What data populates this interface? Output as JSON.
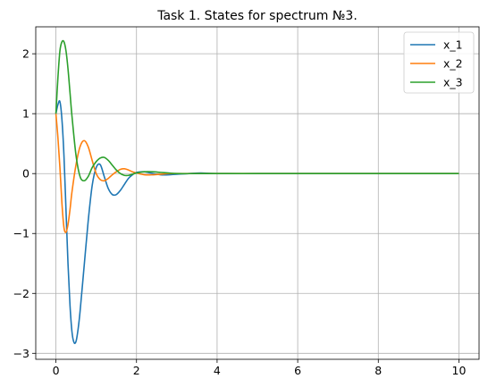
{
  "chart_data": {
    "type": "line",
    "title": "Task 1. States for spectrum №3.",
    "xlabel": "",
    "ylabel": "",
    "xlim": [
      -0.5,
      10.5
    ],
    "ylim": [
      -3.1,
      2.45
    ],
    "xticks": [
      0,
      2,
      4,
      6,
      8,
      10
    ],
    "xtick_labels": [
      "0",
      "2",
      "4",
      "6",
      "8",
      "10"
    ],
    "yticks": [
      -3,
      -2,
      -1,
      0,
      1,
      2
    ],
    "ytick_labels": [
      "−3",
      "−2",
      "−1",
      "0",
      "1",
      "2"
    ],
    "grid": true,
    "legend_position": "top-right",
    "series": [
      {
        "name": "x_1",
        "color": "#1f77b4",
        "x": [
          0,
          0.05,
          0.1,
          0.15,
          0.2,
          0.25,
          0.3,
          0.35,
          0.4,
          0.45,
          0.5,
          0.55,
          0.6,
          0.7,
          0.8,
          0.9,
          1.0,
          1.1,
          1.2,
          1.3,
          1.4,
          1.5,
          1.6,
          1.7,
          1.8,
          1.9,
          2.0,
          2.2,
          2.4,
          2.6,
          2.8,
          3.0,
          3.3,
          3.6,
          4.0,
          5,
          6,
          7,
          8,
          9,
          10
        ],
        "values": [
          1.0,
          1.15,
          1.2,
          0.9,
          0.3,
          -0.6,
          -1.5,
          -2.2,
          -2.65,
          -2.82,
          -2.8,
          -2.6,
          -2.3,
          -1.55,
          -0.8,
          -0.2,
          0.1,
          0.15,
          -0.05,
          -0.25,
          -0.35,
          -0.35,
          -0.28,
          -0.18,
          -0.08,
          -0.02,
          0.02,
          0.03,
          0.0,
          -0.02,
          -0.02,
          -0.01,
          0.0,
          0.01,
          0.0,
          0,
          0,
          0,
          0,
          0,
          0
        ]
      },
      {
        "name": "x_2",
        "color": "#ff7f0e",
        "x": [
          0,
          0.05,
          0.1,
          0.15,
          0.2,
          0.25,
          0.3,
          0.35,
          0.4,
          0.5,
          0.6,
          0.7,
          0.8,
          0.9,
          1.0,
          1.1,
          1.2,
          1.3,
          1.4,
          1.5,
          1.6,
          1.7,
          1.8,
          1.9,
          2.0,
          2.2,
          2.4,
          2.6,
          2.8,
          3.0,
          3.5,
          4,
          5,
          6,
          7,
          8,
          9,
          10
        ],
        "values": [
          1.0,
          0.6,
          0.1,
          -0.5,
          -0.9,
          -0.98,
          -0.85,
          -0.6,
          -0.3,
          0.15,
          0.45,
          0.55,
          0.45,
          0.22,
          0.0,
          -0.1,
          -0.12,
          -0.08,
          -0.02,
          0.03,
          0.07,
          0.08,
          0.06,
          0.03,
          0.01,
          -0.02,
          -0.02,
          -0.01,
          0.0,
          0.0,
          0,
          0,
          0,
          0,
          0,
          0,
          0,
          0
        ]
      },
      {
        "name": "x_3",
        "color": "#2ca02c",
        "x": [
          0,
          0.05,
          0.1,
          0.15,
          0.2,
          0.25,
          0.3,
          0.35,
          0.4,
          0.5,
          0.6,
          0.7,
          0.8,
          0.9,
          1.0,
          1.1,
          1.2,
          1.3,
          1.4,
          1.5,
          1.6,
          1.7,
          1.8,
          1.9,
          2.0,
          2.2,
          2.4,
          2.6,
          2.8,
          3.0,
          3.5,
          4,
          5,
          6,
          7,
          8,
          9,
          10
        ],
        "values": [
          1.0,
          1.6,
          2.05,
          2.2,
          2.2,
          2.05,
          1.75,
          1.35,
          0.95,
          0.3,
          -0.05,
          -0.12,
          -0.05,
          0.1,
          0.2,
          0.26,
          0.27,
          0.22,
          0.14,
          0.06,
          0.0,
          -0.03,
          -0.03,
          -0.01,
          0.01,
          0.03,
          0.03,
          0.02,
          0.01,
          0.0,
          0,
          0,
          0,
          0,
          0,
          0,
          0,
          0
        ]
      }
    ]
  }
}
